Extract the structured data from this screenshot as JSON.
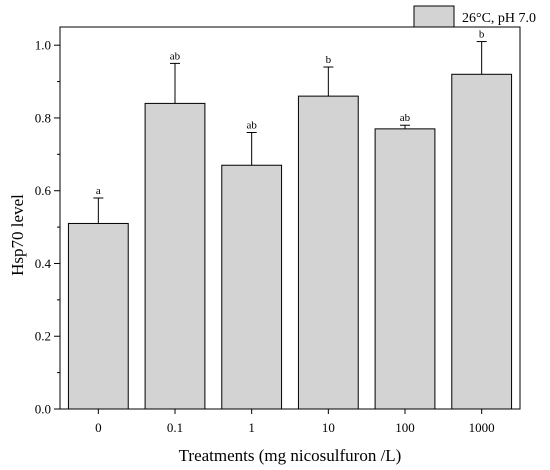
{
  "chart_data": {
    "type": "bar",
    "xlabel": "Treatments (mg nicosulfuron /L)",
    "ylabel": "Hsp70 level",
    "ylim": [
      0,
      1.05
    ],
    "yticks": [
      0.0,
      0.2,
      0.4,
      0.6,
      0.8,
      1.0
    ],
    "ytick_labels": [
      "0.0",
      "0.2",
      "0.4",
      "0.6",
      "0.8",
      "1.0"
    ],
    "minor_ticks": true,
    "grid": false,
    "legend": {
      "position": "top-right",
      "entries": [
        "26°C, pH 7.0"
      ]
    },
    "categories": [
      "0",
      "0.1",
      "1",
      "10",
      "100",
      "1000"
    ],
    "series": [
      {
        "name": "26°C, pH 7.0",
        "color": "#d3d3d3",
        "values": [
          0.51,
          0.84,
          0.67,
          0.86,
          0.77,
          0.92
        ],
        "errors": [
          0.07,
          0.11,
          0.09,
          0.08,
          0.01,
          0.09
        ],
        "labels": [
          "a",
          "ab",
          "ab",
          "b",
          "ab",
          "b"
        ]
      }
    ]
  }
}
